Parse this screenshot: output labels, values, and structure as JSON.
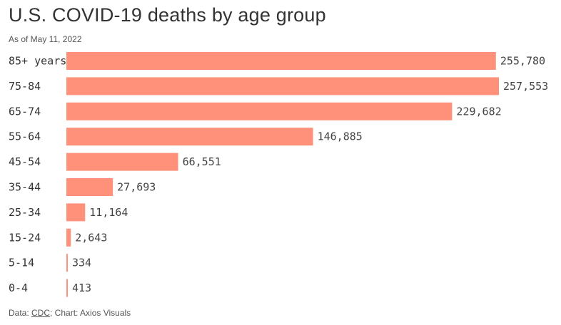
{
  "title": "U.S. COVID-19 deaths by age group",
  "subtitle": "As of May 11, 2022",
  "footer": {
    "prefix": "Data: ",
    "source": "CDC",
    "suffix": "; Chart: Axios Visuals"
  },
  "colors": {
    "bar": "#ff917b"
  },
  "chart_data": {
    "type": "bar",
    "orientation": "horizontal",
    "title": "U.S. COVID-19 deaths by age group",
    "subtitle": "As of May 11, 2022",
    "xlabel": "",
    "ylabel": "",
    "categories": [
      "85+ years",
      "75-84",
      "65-74",
      "55-64",
      "45-54",
      "35-44",
      "25-34",
      "15-24",
      "5-14",
      "0-4"
    ],
    "values": [
      255780,
      257553,
      229682,
      146885,
      66551,
      27693,
      11164,
      2643,
      334,
      413
    ],
    "value_labels": [
      "255,780",
      "257,553",
      "229,682",
      "146,885",
      "66,551",
      "27,693",
      "11,164",
      "2,643",
      "334",
      "413"
    ],
    "xlim": [
      0,
      257553
    ],
    "grid": false,
    "legend": "none"
  }
}
